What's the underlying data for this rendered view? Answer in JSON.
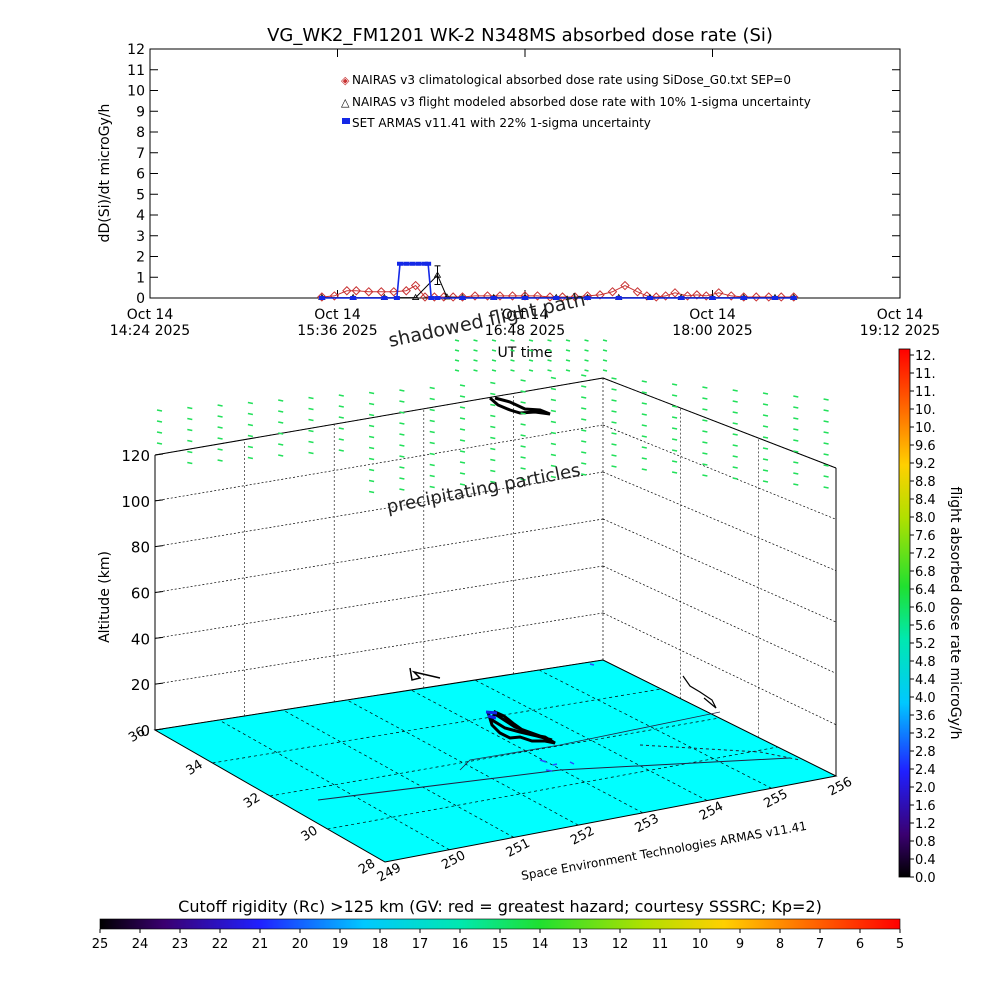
{
  "title": "VG_WK2_FM1201   WK-2 N348MS absorbed dose rate (Si)",
  "colors": {
    "nairas_clim": "#c83232",
    "nairas_flight": "#000000",
    "armas": "#1428e6",
    "ground": "#00ffff",
    "particles": "#22e05a",
    "track": "#000000"
  },
  "chart_data": [
    {
      "type": "line",
      "title": "VG_WK2_FM1201   WK-2 N348MS absorbed dose rate (Si)",
      "ylabel": "dD(Si)/dt microGy/h",
      "xlabel": "UT time",
      "ylim": [
        0,
        12
      ],
      "y_ticks": [
        "0",
        "1",
        "2",
        "3",
        "4",
        "5",
        "6",
        "7",
        "8",
        "9",
        "10",
        "11",
        "12"
      ],
      "x_ticks": [
        {
          "line1": "Oct 14",
          "line2": "14:24 2025"
        },
        {
          "line1": "Oct 14",
          "line2": "15:36 2025"
        },
        {
          "line1": "Oct 14",
          "line2": "16:48 2025"
        },
        {
          "line1": "Oct 14",
          "line2": "18:00 2025"
        },
        {
          "line1": "Oct 14",
          "line2": "19:12 2025"
        }
      ],
      "xlim_hours": [
        14.4,
        19.2
      ],
      "legend": {
        "position": "top-right",
        "entries": [
          "NAIRAS v3 climatological absorbed dose rate using SiDose_G0.txt SEP=0",
          "NAIRAS v3 flight modeled absorbed dose rate with 10% 1-sigma uncertainty",
          "SET ARMAS v11.41 with 22% 1-sigma uncertainty"
        ]
      },
      "series": [
        {
          "name": "NAIRAS v3 climatological absorbed dose rate using SiDose_G0.txt SEP=0",
          "marker": "diamond",
          "x_hours": [
            15.5,
            15.58,
            15.66,
            15.72,
            15.8,
            15.88,
            15.96,
            16.04,
            16.1,
            16.16,
            16.22,
            16.28,
            16.34,
            16.4,
            16.48,
            16.56,
            16.64,
            16.72,
            16.8,
            16.88,
            16.96,
            17.04,
            17.12,
            17.2,
            17.28,
            17.36,
            17.44,
            17.52,
            17.58,
            17.64,
            17.7,
            17.76,
            17.84,
            17.9,
            17.96,
            18.04,
            18.12,
            18.2,
            18.28,
            18.36,
            18.44,
            18.52
          ],
          "values": [
            0.05,
            0.1,
            0.35,
            0.35,
            0.3,
            0.3,
            0.3,
            0.35,
            0.6,
            0.05,
            0.05,
            0.05,
            0.05,
            0.05,
            0.1,
            0.1,
            0.1,
            0.1,
            0.1,
            0.1,
            0.05,
            0.05,
            0.05,
            0.1,
            0.15,
            0.3,
            0.6,
            0.3,
            0.1,
            0.05,
            0.1,
            0.25,
            0.1,
            0.15,
            0.1,
            0.25,
            0.1,
            0.05,
            0.05,
            0.05,
            0.05,
            0.05
          ]
        },
        {
          "name": "NAIRAS v3 flight modeled absorbed dose rate with 10% 1-sigma uncertainty",
          "marker": "triangle",
          "x_hours": [
            15.5,
            15.7,
            15.9,
            16.1,
            16.24,
            16.3,
            16.4,
            16.6,
            16.8,
            17.0,
            17.2,
            17.4,
            17.6,
            17.8,
            18.0,
            18.2,
            18.4,
            18.52
          ],
          "values": [
            0.02,
            0.02,
            0.02,
            0.02,
            1.1,
            0.05,
            0.02,
            0.02,
            0.02,
            0.02,
            0.02,
            0.02,
            0.02,
            0.02,
            0.02,
            0.02,
            0.02,
            0.02
          ],
          "error": [
            0,
            0,
            0,
            0,
            0.45,
            0,
            0,
            0,
            0,
            0,
            0,
            0,
            0,
            0,
            0,
            0,
            0,
            0
          ]
        },
        {
          "name": "SET ARMAS v11.41 with 22% 1-sigma uncertainty",
          "marker": "square",
          "x_hours": [
            15.5,
            15.7,
            15.9,
            15.98,
            16.0,
            16.04,
            16.08,
            16.12,
            16.16,
            16.18,
            16.2,
            16.24,
            16.4,
            16.6,
            16.8,
            17.0,
            17.2,
            17.4,
            17.6,
            17.8,
            18.0,
            18.2,
            18.4,
            18.52
          ],
          "values": [
            0,
            0,
            0,
            0,
            1.65,
            1.65,
            1.65,
            1.65,
            1.65,
            1.65,
            0,
            0,
            0,
            0,
            0,
            0,
            0,
            0,
            0,
            0,
            0,
            0,
            0,
            0
          ]
        }
      ]
    },
    {
      "type": "scatter",
      "title": "",
      "zlabel": "Altitude (km)",
      "zlim": [
        0,
        120
      ],
      "z_ticks": [
        "0",
        "20",
        "40",
        "60",
        "80",
        "100",
        "120"
      ],
      "lon_ticks": [
        "249",
        "250",
        "251",
        "252",
        "253",
        "254",
        "255",
        "256"
      ],
      "lat_ticks": [
        "28",
        "30",
        "32",
        "34",
        "36"
      ],
      "annotations": [
        "shadowed flight path",
        "precipitating particles"
      ],
      "credit": "Space Environment Technologies ARMAS v11.41",
      "flight_track_lon_lat": [
        [
          250.6,
          32.2
        ],
        [
          250.8,
          32.3
        ],
        [
          251.0,
          32.4
        ],
        [
          251.2,
          32.5
        ],
        [
          251.4,
          32.6
        ],
        [
          251.5,
          32.8
        ],
        [
          251.3,
          33.0
        ],
        [
          251.1,
          33.1
        ]
      ]
    }
  ],
  "colorbar_right": {
    "label": "flight absorbed dose rate microGy/h",
    "ticks": [
      "12.",
      "11.",
      "11.",
      "10.",
      "10.",
      "9.6",
      "9.2",
      "8.8",
      "8.4",
      "8.0",
      "7.6",
      "7.2",
      "6.8",
      "6.4",
      "6.0",
      "5.6",
      "5.2",
      "4.8",
      "4.4",
      "4.0",
      "3.6",
      "3.2",
      "2.8",
      "2.4",
      "2.0",
      "1.6",
      "1.2",
      "0.8",
      "0.4",
      "0.0"
    ]
  },
  "colorbar_bottom": {
    "title": "Cutoff rigidity (Rc) >125 km (GV: red = greatest hazard; courtesy SSSRC; Kp=2)",
    "ticks": [
      "25",
      "24",
      "23",
      "22",
      "21",
      "20",
      "19",
      "18",
      "17",
      "16",
      "15",
      "14",
      "13",
      "12",
      "11",
      "10",
      "9",
      "8",
      "7",
      "6",
      "5"
    ]
  }
}
